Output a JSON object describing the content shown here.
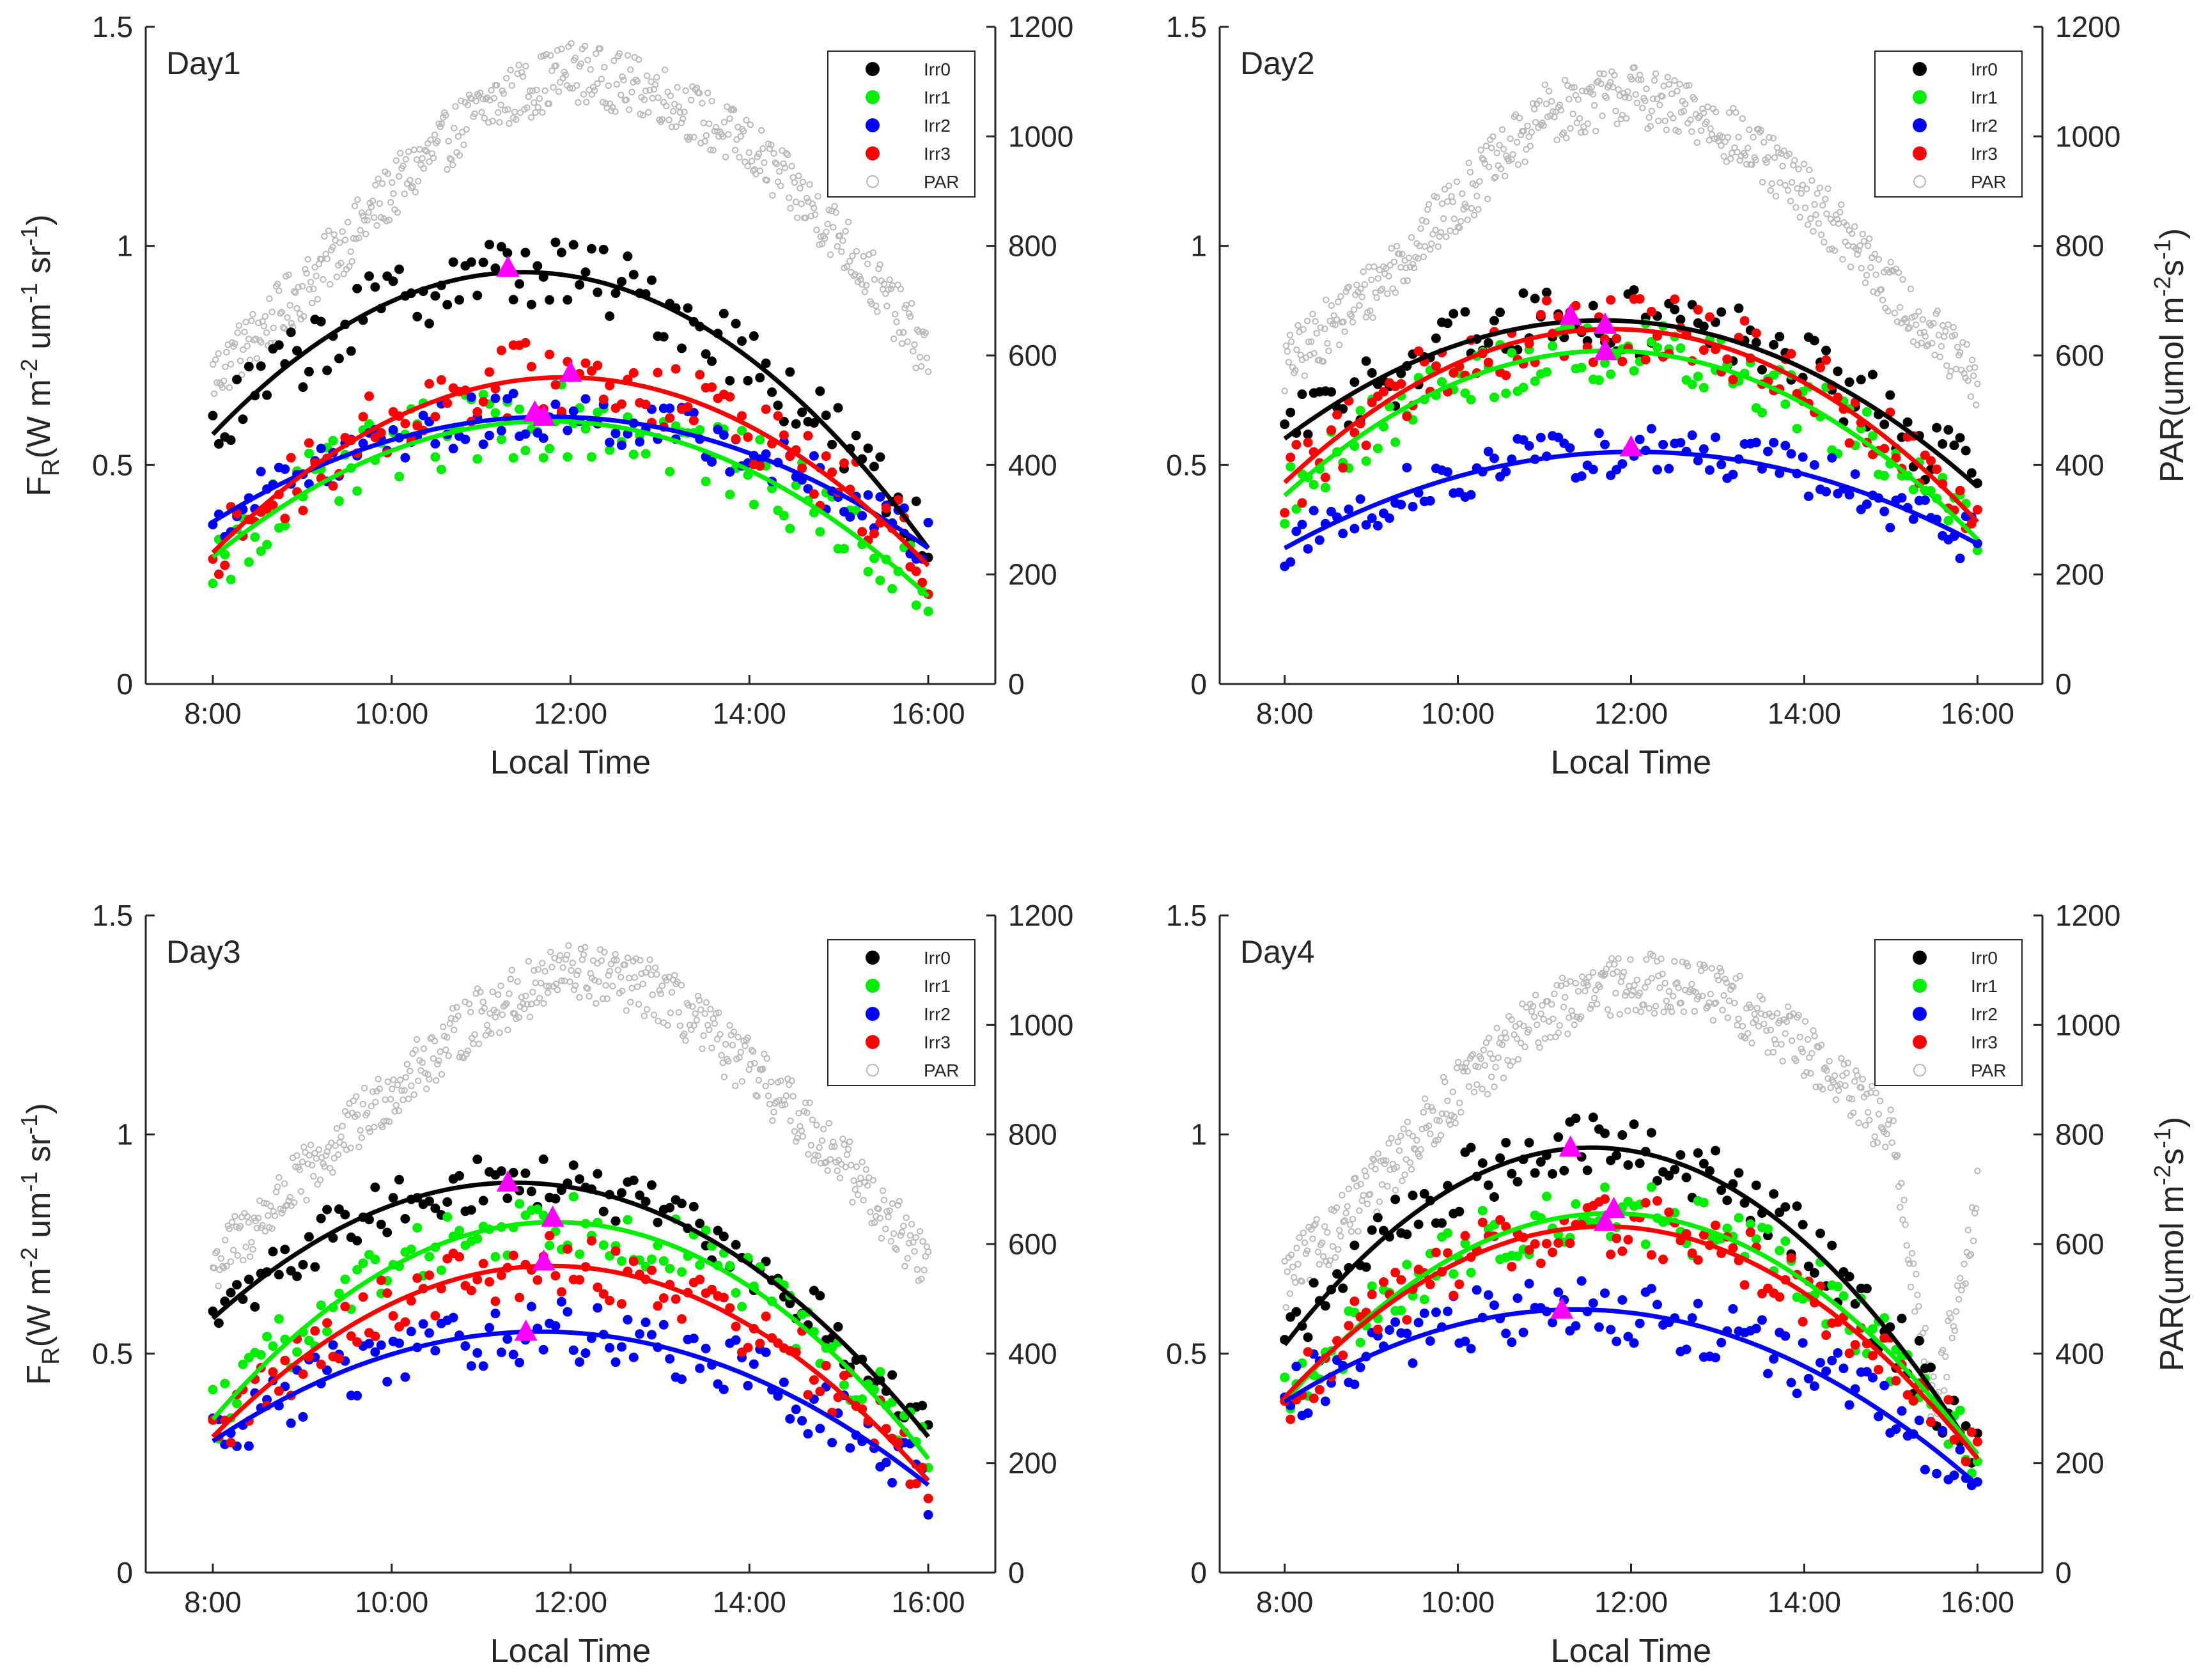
{
  "figure": {
    "left_axis_label": "F",
    "left_axis_label_sub": "R",
    "left_axis_label_rest": "(W m",
    "left_axis_label_sup1": "-2",
    "left_axis_label_mid": " um",
    "left_axis_label_sup2": "-1",
    "left_axis_label_sr": " sr",
    "left_axis_label_sup3": "-1",
    "left_axis_label_end": ")",
    "right_axis_label_start": "PAR(umol m",
    "right_axis_label_sup1": "-2",
    "right_axis_label_mid": "s",
    "right_axis_label_sup2": "-1",
    "right_axis_label_end": ")",
    "x_axis_label": "Local Time",
    "x_ticks": [
      "8:00",
      "10:00",
      "12:00",
      "14:00",
      "16:00"
    ],
    "y_ticks": [
      "0",
      "0.5",
      "1",
      "1.5"
    ],
    "y2_ticks": [
      "0",
      "200",
      "400",
      "600",
      "800",
      "1000",
      "1200"
    ],
    "legend": [
      "Irr0",
      "Irr1",
      "Irr2",
      "Irr3",
      "PAR"
    ],
    "colors": {
      "Irr0": "#000000",
      "Irr1": "#00ee00",
      "Irr2": "#0000ff",
      "Irr3": "#ff0000",
      "PAR": "#b8b8b8",
      "peak": "#ff00ff"
    }
  },
  "chart_data": [
    {
      "type": "scatter",
      "title": "Day1",
      "xlabel": "Local Time",
      "ylabel": "FR(W m-2 um-1 sr-1)",
      "y2label": "PAR(umol m-2s-1)",
      "xlim": [
        7.25,
        16.75
      ],
      "ylim": [
        0,
        1.5
      ],
      "y2lim": [
        0,
        1200
      ],
      "par": [
        [
          8.0,
          560
        ],
        [
          9.0,
          720
        ],
        [
          10.0,
          900
        ],
        [
          11.0,
          1050
        ],
        [
          12.0,
          1120
        ],
        [
          13.0,
          1080
        ],
        [
          14.0,
          980
        ],
        [
          15.0,
          820
        ],
        [
          16.0,
          600
        ]
      ],
      "series": [
        {
          "name": "Irr0",
          "fit": [
            8.0,
            0.57,
            11.5,
            0.94,
            16.0,
            0.31
          ],
          "peak": [
            11.3,
            0.95
          ],
          "noise": 0.07
        },
        {
          "name": "Irr1",
          "fit": [
            8.0,
            0.29,
            11.7,
            0.6,
            16.0,
            0.2
          ],
          "peak": [
            11.7,
            0.61
          ],
          "noise": 0.07
        },
        {
          "name": "Irr2",
          "fit": [
            8.0,
            0.37,
            11.7,
            0.61,
            16.0,
            0.31
          ],
          "peak": [
            11.6,
            0.62
          ],
          "noise": 0.05
        },
        {
          "name": "Irr3",
          "fit": [
            8.0,
            0.3,
            11.9,
            0.7,
            16.0,
            0.27
          ],
          "peak": [
            12.0,
            0.71
          ],
          "noise": 0.07
        }
      ]
    },
    {
      "type": "scatter",
      "title": "Day2",
      "xlabel": "Local Time",
      "ylabel": "FR(W m-2 um-1 sr-1)",
      "y2label": "PAR(umol m-2s-1)",
      "xlim": [
        7.25,
        16.75
      ],
      "ylim": [
        0,
        1.5
      ],
      "y2lim": [
        0,
        1200
      ],
      "par": [
        [
          8.0,
          580
        ],
        [
          9.0,
          720
        ],
        [
          10.0,
          880
        ],
        [
          11.0,
          1040
        ],
        [
          12.0,
          1080
        ],
        [
          13.0,
          1020
        ],
        [
          14.0,
          900
        ],
        [
          15.0,
          720
        ],
        [
          16.0,
          550
        ]
      ],
      "series": [
        {
          "name": "Irr0",
          "fit": [
            8.0,
            0.56,
            11.7,
            0.83,
            16.0,
            0.45
          ],
          "peak": [
            11.3,
            0.84
          ],
          "noise": 0.07
        },
        {
          "name": "Irr1",
          "fit": [
            8.0,
            0.43,
            11.9,
            0.76,
            16.0,
            0.33
          ],
          "peak": [
            11.7,
            0.76
          ],
          "noise": 0.06
        },
        {
          "name": "Irr2",
          "fit": [
            8.0,
            0.31,
            12.0,
            0.53,
            16.0,
            0.32
          ],
          "peak": [
            12.0,
            0.54
          ],
          "noise": 0.05
        },
        {
          "name": "Irr3",
          "fit": [
            8.0,
            0.46,
            11.7,
            0.81,
            16.0,
            0.37
          ],
          "peak": [
            11.7,
            0.82
          ],
          "noise": 0.07
        }
      ]
    },
    {
      "type": "scatter",
      "title": "Day3",
      "xlabel": "Local Time",
      "ylabel": "FR(W m-2 um-1 sr-1)",
      "y2label": "PAR(umol m-2s-1)",
      "xlim": [
        7.25,
        16.75
      ],
      "ylim": [
        0,
        1.5
      ],
      "y2lim": [
        0,
        1200
      ],
      "par": [
        [
          8.0,
          560
        ],
        [
          9.0,
          720
        ],
        [
          10.0,
          880
        ],
        [
          11.0,
          1020
        ],
        [
          12.0,
          1100
        ],
        [
          13.0,
          1060
        ],
        [
          14.0,
          920
        ],
        [
          15.0,
          760
        ],
        [
          16.0,
          560
        ]
      ],
      "series": [
        {
          "name": "Irr0",
          "fit": [
            8.0,
            0.58,
            11.4,
            0.89,
            16.0,
            0.31
          ],
          "peak": [
            11.3,
            0.89
          ],
          "noise": 0.05
        },
        {
          "name": "Irr1",
          "fit": [
            8.0,
            0.35,
            11.8,
            0.8,
            16.0,
            0.26
          ],
          "peak": [
            11.8,
            0.81
          ],
          "noise": 0.06
        },
        {
          "name": "Irr2",
          "fit": [
            8.0,
            0.3,
            11.7,
            0.55,
            16.0,
            0.2
          ],
          "peak": [
            11.5,
            0.55
          ],
          "noise": 0.06
        },
        {
          "name": "Irr3",
          "fit": [
            8.0,
            0.31,
            11.7,
            0.7,
            16.0,
            0.21
          ],
          "peak": [
            11.7,
            0.71
          ],
          "noise": 0.06
        }
      ]
    },
    {
      "type": "scatter",
      "title": "Day4",
      "xlabel": "Local Time",
      "ylabel": "FR(W m-2 um-1 sr-1)",
      "y2label": "PAR(umol m-2s-1)",
      "xlim": [
        7.25,
        16.75
      ],
      "ylim": [
        0,
        1.5
      ],
      "y2lim": [
        0,
        1200
      ],
      "par": [
        [
          8.0,
          530
        ],
        [
          9.0,
          700
        ],
        [
          10.0,
          880
        ],
        [
          11.0,
          1020
        ],
        [
          12.0,
          1080
        ],
        [
          13.0,
          1060
        ],
        [
          14.0,
          960
        ],
        [
          15.0,
          800
        ],
        [
          15.5,
          300
        ],
        [
          16.0,
          680
        ]
      ],
      "series": [
        {
          "name": "Irr0",
          "fit": [
            8.0,
            0.52,
            11.5,
            0.97,
            16.0,
            0.26
          ],
          "peak": [
            11.3,
            0.97
          ],
          "noise": 0.06
        },
        {
          "name": "Irr1",
          "fit": [
            8.0,
            0.39,
            11.7,
            0.82,
            16.0,
            0.27
          ],
          "peak": [
            11.8,
            0.83
          ],
          "noise": 0.06
        },
        {
          "name": "Irr2",
          "fit": [
            8.0,
            0.39,
            11.2,
            0.6,
            16.0,
            0.2
          ],
          "peak": [
            11.2,
            0.6
          ],
          "noise": 0.06
        },
        {
          "name": "Irr3",
          "fit": [
            8.0,
            0.4,
            11.7,
            0.79,
            16.0,
            0.26
          ],
          "peak": [
            11.7,
            0.8
          ],
          "noise": 0.06
        }
      ]
    }
  ]
}
